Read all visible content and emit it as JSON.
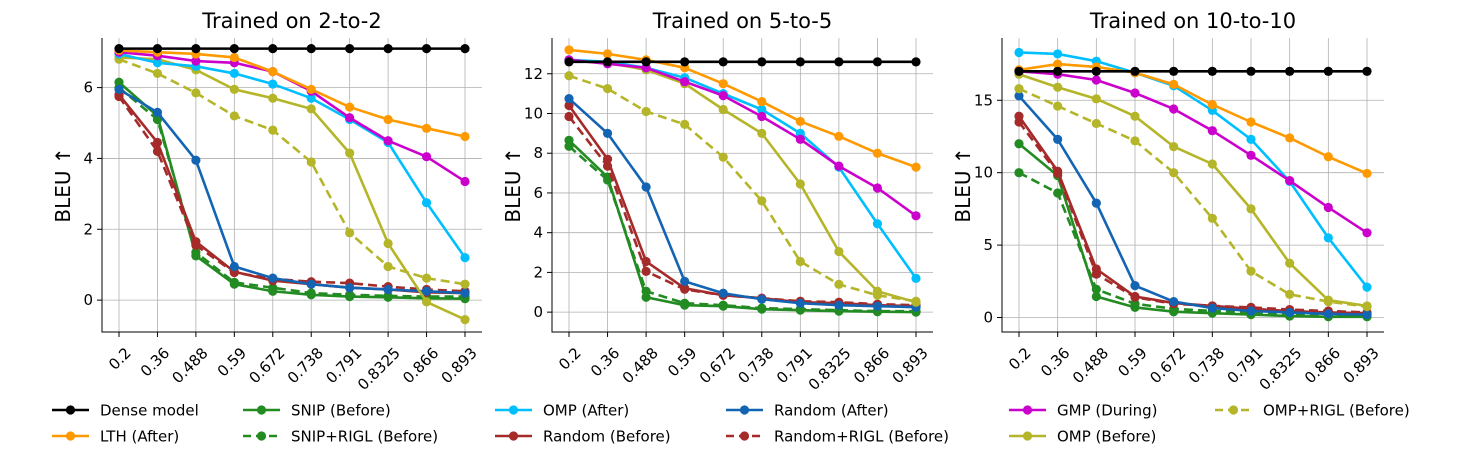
{
  "colors": {
    "dense": "#000000",
    "lth_after": "#ff9900",
    "snip_before": "#228b22",
    "snip_rigl_before": "#228b22",
    "omp_after": "#00bfff",
    "random_before": "#a52a2a",
    "random_after": "#1464b4",
    "random_rigl_before": "#a52a2a",
    "gmp_during": "#cc00cc",
    "omp_before": "#b5b52a",
    "omp_rigl_before": "#b5b52a"
  },
  "chart_data": [
    {
      "type": "line",
      "title": "Trained on 2-to-2",
      "ylabel": "BLEU ↑",
      "categories": [
        "0.2",
        "0.36",
        "0.488",
        "0.59",
        "0.672",
        "0.738",
        "0.791",
        "0.8325",
        "0.866",
        "0.893"
      ],
      "ylim": [
        -0.9,
        7.4
      ],
      "yticks": [
        0,
        2,
        4,
        6
      ],
      "grid": true,
      "series": [
        {
          "name": "Dense model",
          "key": "dense",
          "dashed": false,
          "values": [
            7.1,
            7.1,
            7.1,
            7.1,
            7.1,
            7.1,
            7.1,
            7.1,
            7.1,
            7.1
          ]
        },
        {
          "name": "LTH (After)",
          "key": "lth_after",
          "dashed": false,
          "values": [
            7.05,
            7.0,
            6.95,
            6.85,
            6.45,
            5.95,
            5.45,
            5.1,
            4.85,
            4.62
          ]
        },
        {
          "name": "GMP (During)",
          "key": "gmp_during",
          "dashed": false,
          "values": [
            7.0,
            6.9,
            6.75,
            6.7,
            6.45,
            5.9,
            5.15,
            4.5,
            4.05,
            3.35
          ]
        },
        {
          "name": "OMP (After)",
          "key": "omp_after",
          "dashed": false,
          "values": [
            6.95,
            6.7,
            6.6,
            6.4,
            6.1,
            5.7,
            5.1,
            4.45,
            2.75,
            1.2
          ]
        },
        {
          "name": "OMP (Before)",
          "key": "omp_before",
          "dashed": false,
          "values": [
            6.85,
            6.8,
            6.5,
            5.95,
            5.7,
            5.4,
            4.15,
            1.6,
            -0.05,
            -0.55
          ]
        },
        {
          "name": "OMP+RIGL (Before)",
          "key": "omp_rigl_before",
          "dashed": true,
          "values": [
            6.8,
            6.4,
            5.85,
            5.2,
            4.8,
            3.9,
            1.9,
            0.95,
            0.62,
            0.45
          ]
        },
        {
          "name": "Random (After)",
          "key": "random_after",
          "dashed": false,
          "values": [
            5.95,
            5.3,
            3.95,
            0.95,
            0.62,
            0.45,
            0.35,
            0.3,
            0.25,
            0.2
          ]
        },
        {
          "name": "Random (Before)",
          "key": "random_before",
          "dashed": false,
          "values": [
            5.8,
            4.45,
            1.65,
            0.8,
            0.55,
            0.45,
            0.35,
            0.3,
            0.22,
            0.2
          ]
        },
        {
          "name": "Random+RIGL (Before)",
          "key": "random_rigl_before",
          "dashed": true,
          "values": [
            5.75,
            4.2,
            1.55,
            0.78,
            0.6,
            0.52,
            0.48,
            0.38,
            0.3,
            0.25
          ]
        },
        {
          "name": "SNIP (Before)",
          "key": "snip_before",
          "dashed": false,
          "values": [
            6.15,
            5.2,
            1.25,
            0.45,
            0.25,
            0.15,
            0.1,
            0.08,
            0.05,
            0.04
          ]
        },
        {
          "name": "SNIP+RIGL (Before)",
          "key": "snip_rigl_before",
          "dashed": true,
          "values": [
            6.0,
            5.1,
            1.35,
            0.5,
            0.35,
            0.2,
            0.15,
            0.12,
            0.1,
            0.1
          ]
        }
      ]
    },
    {
      "type": "line",
      "title": "Trained on 5-to-5",
      "ylabel": "BLEU ↑",
      "categories": [
        "0.2",
        "0.36",
        "0.488",
        "0.59",
        "0.672",
        "0.738",
        "0.791",
        "0.8325",
        "0.866",
        "0.893"
      ],
      "ylim": [
        -1.0,
        13.8
      ],
      "yticks": [
        0,
        2,
        4,
        6,
        8,
        10,
        12
      ],
      "grid": true,
      "series": [
        {
          "name": "Dense model",
          "key": "dense",
          "dashed": false,
          "values": [
            12.6,
            12.6,
            12.6,
            12.6,
            12.6,
            12.6,
            12.6,
            12.6,
            12.6,
            12.6
          ]
        },
        {
          "name": "LTH (After)",
          "key": "lth_after",
          "dashed": false,
          "values": [
            13.2,
            13.0,
            12.7,
            12.3,
            11.5,
            10.6,
            9.6,
            8.85,
            8.0,
            7.3
          ]
        },
        {
          "name": "GMP (During)",
          "key": "gmp_during",
          "dashed": false,
          "values": [
            12.7,
            12.5,
            12.3,
            11.6,
            10.9,
            9.85,
            8.7,
            7.35,
            6.25,
            4.85
          ]
        },
        {
          "name": "OMP (After)",
          "key": "omp_after",
          "dashed": false,
          "values": [
            12.7,
            12.6,
            12.3,
            11.8,
            11.0,
            10.2,
            9.0,
            7.3,
            4.45,
            1.7
          ]
        },
        {
          "name": "OMP (Before)",
          "key": "omp_before",
          "dashed": false,
          "values": [
            12.65,
            12.55,
            12.2,
            11.5,
            10.2,
            9.0,
            6.45,
            3.05,
            1.05,
            0.5
          ]
        },
        {
          "name": "OMP+RIGL (Before)",
          "key": "omp_rigl_before",
          "dashed": true,
          "values": [
            11.9,
            11.25,
            10.1,
            9.45,
            7.8,
            5.6,
            2.55,
            1.4,
            0.85,
            0.55
          ]
        },
        {
          "name": "Random (After)",
          "key": "random_after",
          "dashed": false,
          "values": [
            10.75,
            9.0,
            6.3,
            1.55,
            0.95,
            0.65,
            0.45,
            0.35,
            0.3,
            0.25
          ]
        },
        {
          "name": "Random (Before)",
          "key": "random_before",
          "dashed": false,
          "values": [
            10.4,
            7.7,
            2.55,
            1.2,
            0.85,
            0.7,
            0.5,
            0.45,
            0.35,
            0.3
          ]
        },
        {
          "name": "Random+RIGL (Before)",
          "key": "random_rigl_before",
          "dashed": true,
          "values": [
            9.85,
            7.35,
            2.05,
            1.15,
            0.85,
            0.7,
            0.55,
            0.5,
            0.4,
            0.35
          ]
        },
        {
          "name": "SNIP (Before)",
          "key": "snip_before",
          "dashed": false,
          "values": [
            8.65,
            6.8,
            0.75,
            0.35,
            0.3,
            0.15,
            0.1,
            0.05,
            0.02,
            0.0
          ]
        },
        {
          "name": "SNIP+RIGL (Before)",
          "key": "snip_rigl_before",
          "dashed": true,
          "values": [
            8.35,
            6.65,
            1.05,
            0.45,
            0.35,
            0.2,
            0.15,
            0.1,
            0.05,
            0.05
          ]
        }
      ]
    },
    {
      "type": "line",
      "title": "Trained on 10-to-10",
      "ylabel": "BLEU ↑",
      "categories": [
        "0.2",
        "0.36",
        "0.488",
        "0.59",
        "0.672",
        "0.738",
        "0.791",
        "0.8325",
        "0.866",
        "0.893"
      ],
      "ylim": [
        -1.0,
        19.3
      ],
      "yticks": [
        0,
        5,
        10,
        15
      ],
      "grid": true,
      "series": [
        {
          "name": "Dense model",
          "key": "dense",
          "dashed": false,
          "values": [
            17.0,
            17.0,
            17.0,
            17.0,
            17.0,
            17.0,
            17.0,
            17.0,
            17.0,
            17.0
          ]
        },
        {
          "name": "LTH (After)",
          "key": "lth_after",
          "dashed": false,
          "values": [
            17.1,
            17.5,
            17.3,
            16.9,
            16.1,
            14.7,
            13.5,
            12.4,
            11.1,
            9.95
          ]
        },
        {
          "name": "GMP (During)",
          "key": "gmp_during",
          "dashed": false,
          "values": [
            17.0,
            16.8,
            16.4,
            15.5,
            14.4,
            12.9,
            11.2,
            9.45,
            7.6,
            5.85
          ]
        },
        {
          "name": "OMP (After)",
          "key": "omp_after",
          "dashed": false,
          "values": [
            18.3,
            18.2,
            17.7,
            16.9,
            16.0,
            14.3,
            12.3,
            9.4,
            5.5,
            2.1
          ]
        },
        {
          "name": "OMP (Before)",
          "key": "omp_before",
          "dashed": false,
          "values": [
            16.8,
            15.9,
            15.1,
            13.9,
            11.8,
            10.6,
            7.5,
            3.75,
            1.2,
            0.8
          ]
        },
        {
          "name": "OMP+RIGL (Before)",
          "key": "omp_rigl_before",
          "dashed": true,
          "values": [
            15.8,
            14.6,
            13.4,
            12.2,
            10.0,
            6.85,
            3.2,
            1.6,
            1.1,
            0.75
          ]
        },
        {
          "name": "Random (After)",
          "key": "random_after",
          "dashed": false,
          "values": [
            15.3,
            12.3,
            7.9,
            2.2,
            1.1,
            0.65,
            0.45,
            0.35,
            0.25,
            0.2
          ]
        },
        {
          "name": "Random (Before)",
          "key": "random_before",
          "dashed": false,
          "values": [
            13.9,
            10.1,
            3.35,
            1.45,
            1.0,
            0.8,
            0.6,
            0.45,
            0.35,
            0.3
          ]
        },
        {
          "name": "Random+RIGL (Before)",
          "key": "random_rigl_before",
          "dashed": true,
          "values": [
            13.5,
            9.95,
            3.0,
            1.4,
            0.95,
            0.8,
            0.7,
            0.55,
            0.45,
            0.35
          ]
        },
        {
          "name": "SNIP (Before)",
          "key": "snip_before",
          "dashed": false,
          "values": [
            12.0,
            9.8,
            1.45,
            0.7,
            0.4,
            0.3,
            0.2,
            0.1,
            0.05,
            0.05
          ]
        },
        {
          "name": "SNIP+RIGL (Before)",
          "key": "snip_rigl_before",
          "dashed": true,
          "values": [
            10.0,
            8.6,
            1.95,
            0.95,
            0.6,
            0.45,
            0.35,
            0.25,
            0.15,
            0.1
          ]
        }
      ]
    }
  ],
  "legend": [
    {
      "name": "Dense model",
      "key": "dense",
      "dashed": false
    },
    {
      "name": "LTH (After)",
      "key": "lth_after",
      "dashed": false
    },
    {
      "name": "SNIP (Before)",
      "key": "snip_before",
      "dashed": false
    },
    {
      "name": "SNIP+RIGL (Before)",
      "key": "snip_rigl_before",
      "dashed": true
    },
    {
      "name": "OMP (After)",
      "key": "omp_after",
      "dashed": false
    },
    {
      "name": "Random (Before)",
      "key": "random_before",
      "dashed": false
    },
    {
      "name": "Random (After)",
      "key": "random_after",
      "dashed": false
    },
    {
      "name": "Random+RIGL (Before)",
      "key": "random_rigl_before",
      "dashed": true
    },
    {
      "name": "GMP (During)",
      "key": "gmp_during",
      "dashed": false
    },
    {
      "name": "OMP (Before)",
      "key": "omp_before",
      "dashed": false
    },
    {
      "name": "OMP+RIGL (Before)",
      "key": "omp_rigl_before",
      "dashed": true
    }
  ]
}
